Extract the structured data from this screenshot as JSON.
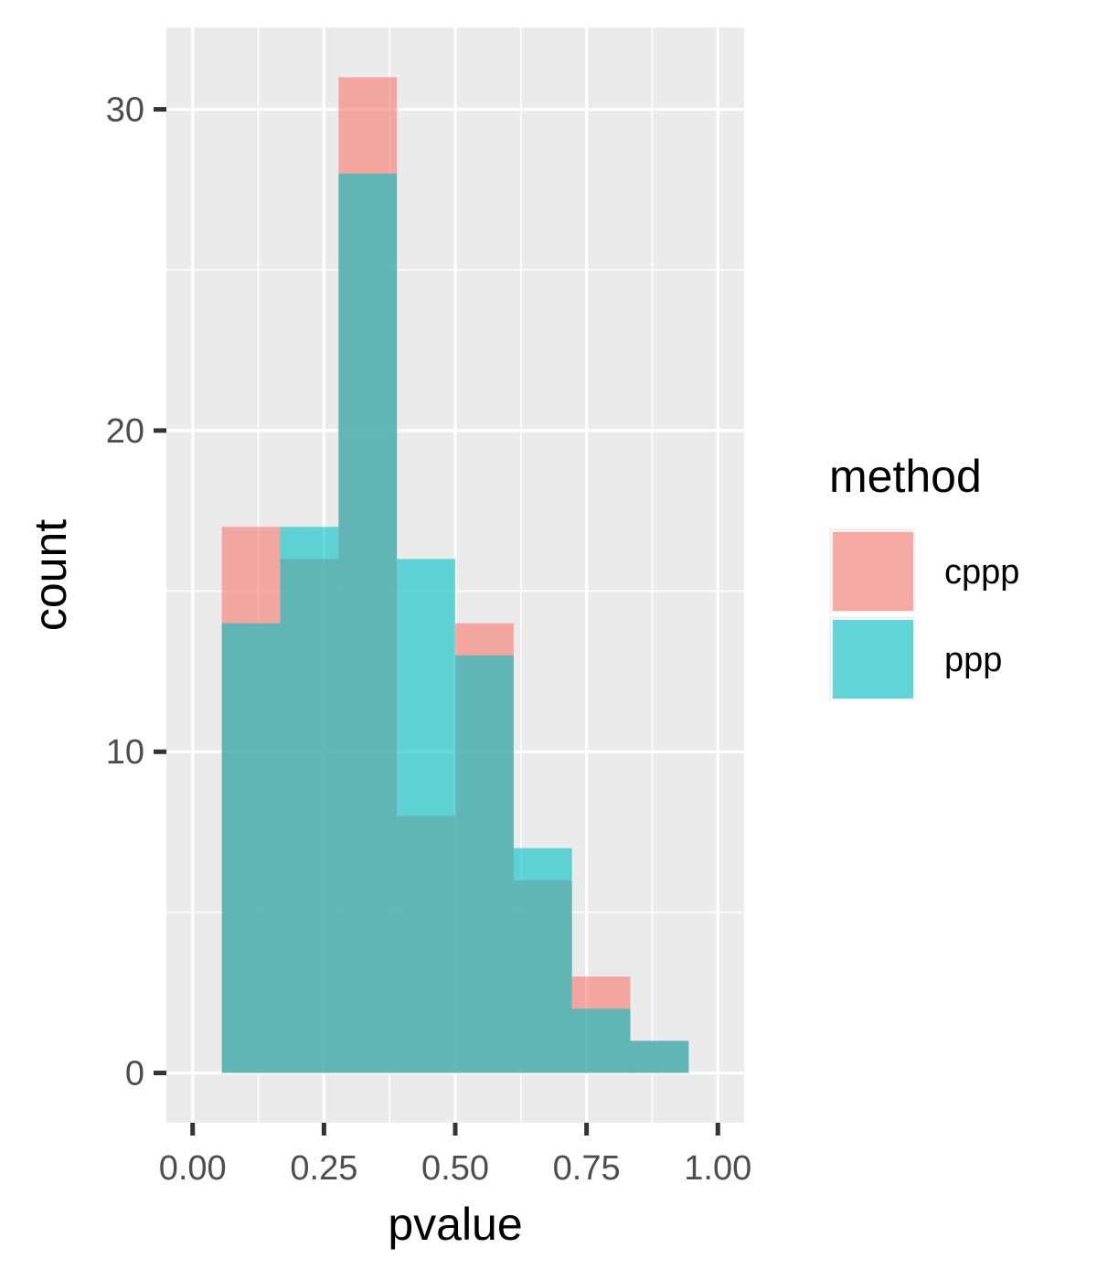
{
  "chart_data": {
    "type": "bar",
    "subtype": "overlapping-histogram",
    "title": "",
    "xlabel": "pvalue",
    "ylabel": "count",
    "xlim": [
      -0.05,
      1.05
    ],
    "ylim": [
      -1.55,
      32.55
    ],
    "x_ticks": [
      0.0,
      0.25,
      0.5,
      0.75,
      1.0
    ],
    "x_tick_labels": [
      "0.00",
      "0.25",
      "0.50",
      "0.75",
      "1.00"
    ],
    "y_ticks": [
      0,
      10,
      20,
      30
    ],
    "y_tick_labels": [
      "0",
      "10",
      "20",
      "30"
    ],
    "grid": true,
    "legend": {
      "title": "method",
      "position": "right"
    },
    "bins": [
      [
        0.0556,
        0.1667
      ],
      [
        0.1667,
        0.2778
      ],
      [
        0.2778,
        0.3889
      ],
      [
        0.3889,
        0.5
      ],
      [
        0.5,
        0.6111
      ],
      [
        0.6111,
        0.7222
      ],
      [
        0.7222,
        0.8333
      ],
      [
        0.8333,
        0.9444
      ]
    ],
    "series": [
      {
        "name": "cppp",
        "color": "#F8766D",
        "values": [
          17,
          16,
          31,
          8,
          14,
          6,
          3,
          1
        ]
      },
      {
        "name": "ppp",
        "color": "#00BFC4",
        "values": [
          14,
          17,
          28,
          16,
          13,
          7,
          2,
          1
        ]
      }
    ]
  }
}
